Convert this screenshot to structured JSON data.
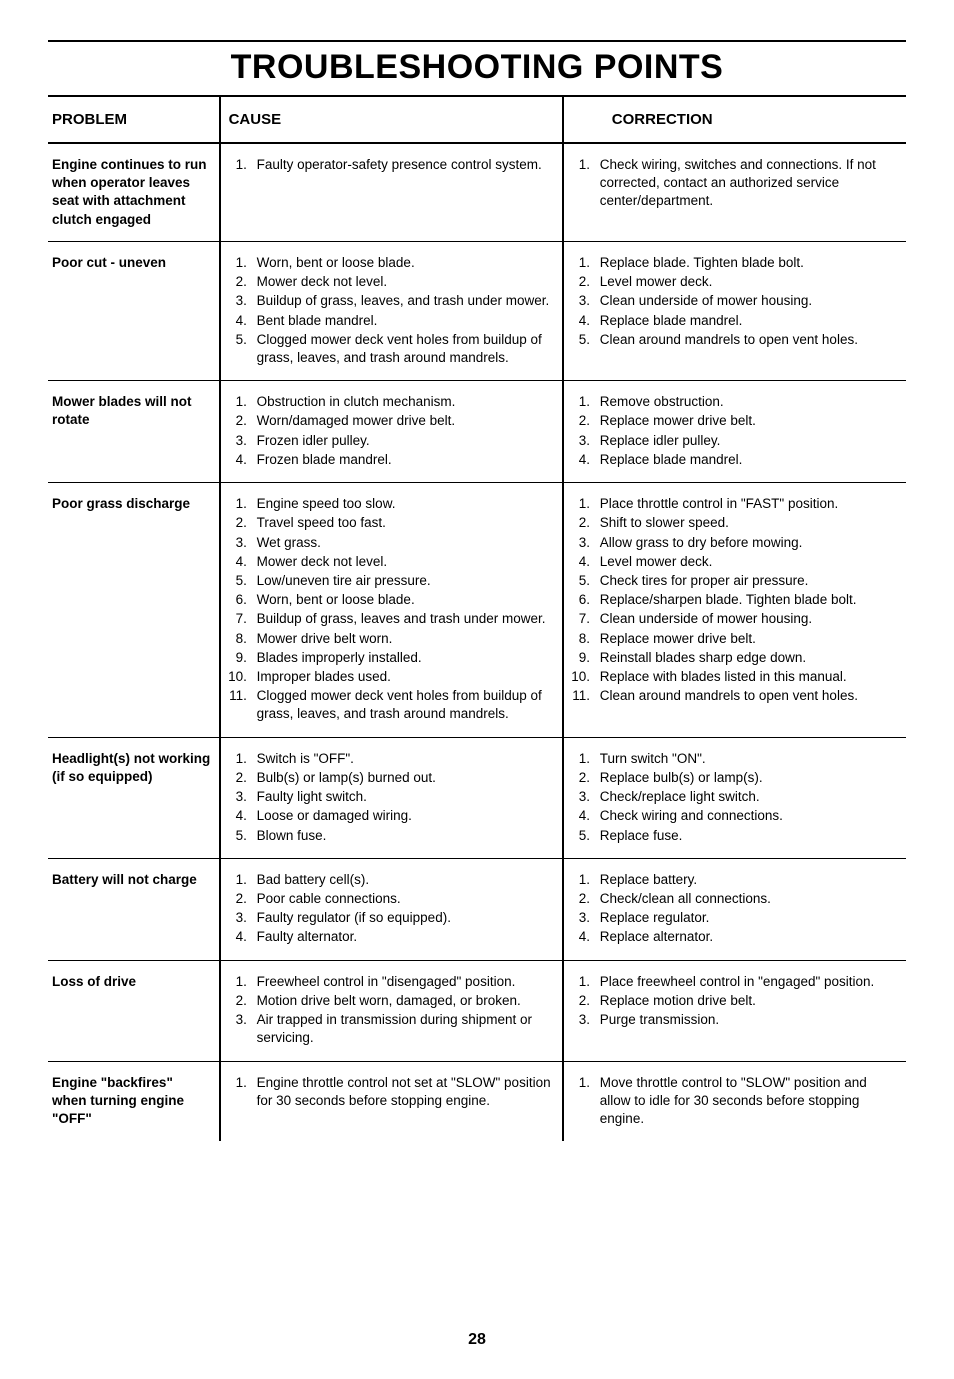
{
  "page": {
    "title": "TROUBLESHOOTING POINTS",
    "page_number": "28"
  },
  "table": {
    "type": "table",
    "columns": [
      "PROBLEM",
      "CAUSE",
      "CORRECTION"
    ],
    "rows": [
      {
        "problem": "Engine continues to run when operator leaves seat with attachment clutch engaged",
        "causes": [
          "Faulty operator-safety presence control system."
        ],
        "corrections": [
          "Check wiring, switches  and connections. If not corrected, contact an authorized service center/department."
        ]
      },
      {
        "problem": "Poor cut - uneven",
        "causes": [
          "Worn, bent or loose blade.",
          "Mower deck not level.",
          "Buildup of grass, leaves, and trash under mower.",
          "Bent blade mandrel.",
          "Clogged mower deck vent holes from buildup of grass, leaves, and trash around mandrels."
        ],
        "corrections": [
          "Replace blade.  Tighten blade bolt.",
          "Level mower deck.",
          "Clean underside of mower housing.",
          "Replace blade mandrel.",
          "Clean around mandrels to open vent holes."
        ]
      },
      {
        "problem": "Mower blades will not rotate",
        "causes": [
          "Obstruction in clutch mechanism.",
          "Worn/damaged mower drive belt.",
          "Frozen idler pulley.",
          "Frozen blade mandrel."
        ],
        "corrections": [
          "Remove obstruction.",
          "Replace mower drive belt.",
          "Replace idler pulley.",
          "Replace blade mandrel."
        ]
      },
      {
        "problem": "Poor grass discharge",
        "causes": [
          "Engine speed too slow.",
          "Travel speed too fast.",
          "Wet grass.",
          "Mower deck not level.",
          "Low/uneven tire air pressure.",
          "Worn, bent or loose blade.",
          "Buildup of grass, leaves and trash under mower.",
          "Mower drive belt worn.",
          "Blades improperly installed.",
          "Improper blades used.",
          "Clogged mower deck vent holes from buildup of grass, leaves, and trash around mandrels."
        ],
        "corrections": [
          "Place throttle control in \"FAST\" position.",
          "Shift to slower speed.",
          "Allow grass to dry before mowing.",
          "Level mower deck.",
          "Check tires for proper air pressure.",
          "Replace/sharpen blade.  Tighten blade bolt.",
          "Clean underside of mower housing.",
          "Replace mower drive belt.",
          "Reinstall blades sharp edge down.",
          "Replace with blades listed in this manual.",
          "Clean around mandrels to open vent holes."
        ]
      },
      {
        "problem": "Headlight(s) not working (if so equipped)",
        "causes": [
          "Switch is \"OFF\".",
          "Bulb(s) or lamp(s) burned out.",
          "Faulty light switch.",
          "Loose or damaged wiring.",
          "Blown fuse."
        ],
        "corrections": [
          "Turn switch \"ON\".",
          "Replace bulb(s) or lamp(s).",
          "Check/replace light switch.",
          "Check wiring and connections.",
          "Replace fuse."
        ]
      },
      {
        "problem": "Battery will not charge",
        "causes": [
          "Bad battery cell(s).",
          "Poor cable connections.",
          "Faulty regulator (if so equipped).",
          "Faulty alternator."
        ],
        "corrections": [
          "Replace battery.",
          "Check/clean all connections.",
          "Replace regulator.",
          "Replace alternator."
        ]
      },
      {
        "problem": "Loss of drive",
        "causes": [
          "Freewheel control in \"disengaged\" position.",
          "Motion drive belt worn, damaged, or broken.",
          "Air trapped in transmission during shipment or servicing."
        ],
        "corrections": [
          "Place freewheel control in \"engaged\" position.",
          "Replace motion drive belt.",
          "Purge transmission."
        ]
      },
      {
        "problem": "Engine \"backfires\" when turning engine \"OFF\"",
        "causes": [
          "Engine throttle control not set at \"SLOW\" position for 30 seconds before stopping engine."
        ],
        "corrections": [
          "Move throttle control to \"SLOW\" position and allow to idle for 30 seconds before stopping engine."
        ]
      }
    ]
  }
}
